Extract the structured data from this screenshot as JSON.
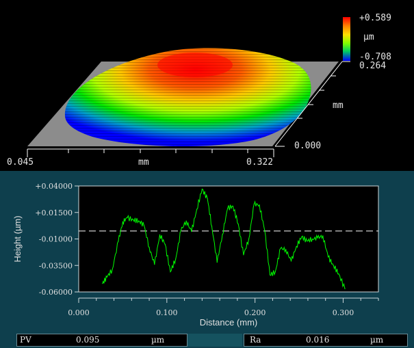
{
  "view3d": {
    "colorbar_max": "+0.589",
    "colorbar_unit": "µm",
    "colorbar_min": "-0.708",
    "y_max": "0.264",
    "y_unit": "mm",
    "y_min": "0.000",
    "x_min": "0.045",
    "x_unit": "mm",
    "x_max": "0.322",
    "colorbar_colors": [
      "#ff0000",
      "#ff7a00",
      "#ffd200",
      "#a8ff00",
      "#00ff00",
      "#00b4a0",
      "#0000ff"
    ]
  },
  "status": {
    "pv_label": "PV",
    "pv_value": "0.095",
    "pv_unit": "µm",
    "ra_label": "Ra",
    "ra_value": "0.016",
    "ra_unit": "µm"
  },
  "chart_data": {
    "type": "line",
    "title": "",
    "xlabel": "Distance (mm)",
    "ylabel": "Height (µm)",
    "xlim": [
      0.0,
      0.34
    ],
    "ylim": [
      -0.06,
      0.04
    ],
    "x_ticks": [
      "0.000",
      "0.100",
      "0.200",
      "0.300"
    ],
    "y_ticks": [
      "+0.04000",
      "+0.01500",
      "-0.01000",
      "-0.03500",
      "-0.06000"
    ],
    "reference_line": -0.0025,
    "line_color": "#00ff00",
    "grid": false,
    "series": [
      {
        "x": [
          0.027,
          0.032,
          0.038,
          0.045,
          0.05,
          0.055,
          0.062,
          0.068,
          0.074,
          0.08,
          0.086,
          0.092,
          0.098,
          0.104,
          0.11,
          0.116,
          0.122,
          0.128,
          0.134,
          0.14,
          0.146,
          0.151,
          0.157,
          0.163,
          0.169,
          0.175,
          0.181,
          0.187,
          0.193,
          0.199,
          0.205,
          0.211,
          0.217,
          0.223,
          0.229,
          0.235,
          0.241,
          0.247,
          0.253,
          0.259,
          0.265,
          0.271,
          0.277,
          0.283,
          0.289,
          0.295,
          0.302
        ],
        "y": [
          -0.052,
          -0.046,
          -0.039,
          -0.012,
          0.006,
          0.01,
          0.008,
          0.007,
          0.003,
          -0.018,
          -0.034,
          -0.006,
          -0.015,
          -0.041,
          -0.029,
          -0.002,
          0.007,
          -0.003,
          0.018,
          0.037,
          0.028,
          0.002,
          -0.032,
          -0.006,
          0.019,
          0.021,
          0.004,
          -0.025,
          -0.01,
          0.023,
          0.022,
          -0.002,
          -0.044,
          -0.041,
          -0.019,
          -0.02,
          -0.031,
          -0.017,
          -0.008,
          -0.012,
          -0.01,
          -0.009,
          -0.007,
          -0.027,
          -0.035,
          -0.043,
          -0.057
        ]
      }
    ]
  }
}
